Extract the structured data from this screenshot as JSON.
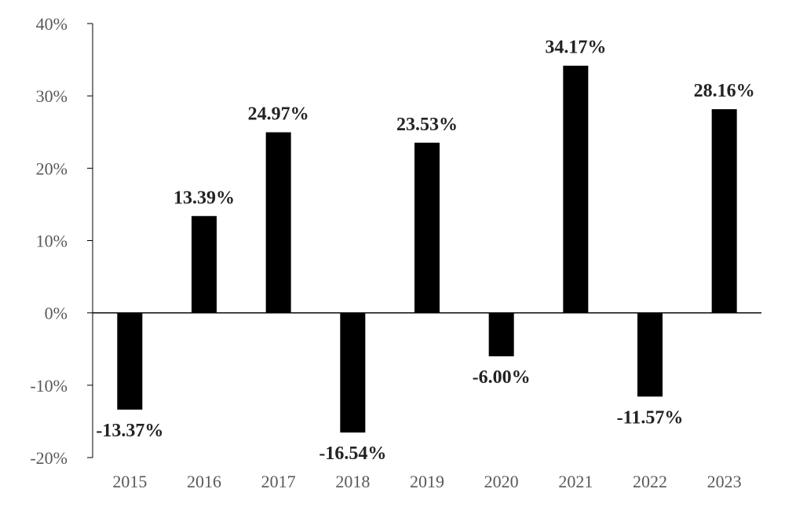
{
  "chart_data": {
    "type": "bar",
    "title": "",
    "xlabel": "",
    "ylabel": "",
    "categories": [
      "2015",
      "2016",
      "2017",
      "2018",
      "2019",
      "2020",
      "2021",
      "2022",
      "2023"
    ],
    "values": [
      -13.37,
      13.39,
      24.97,
      -16.54,
      23.53,
      -6.0,
      34.17,
      -11.57,
      28.16
    ],
    "data_labels": [
      "-13.37%",
      "13.39%",
      "24.97%",
      "-16.54%",
      "23.53%",
      "-6.00%",
      "34.17%",
      "-11.57%",
      "28.16%"
    ],
    "ylim": [
      -20,
      40
    ],
    "yticks": [
      40,
      30,
      20,
      10,
      0,
      -10,
      -20
    ],
    "ytick_labels": [
      "40%",
      "30%",
      "20%",
      "10%",
      "0%",
      "-10%",
      "-20%"
    ],
    "grid": false,
    "legend": "none",
    "colors": {
      "bar": "#000000",
      "axis": "#000000",
      "tick_text": "#595959",
      "label_text": "#222222"
    }
  }
}
